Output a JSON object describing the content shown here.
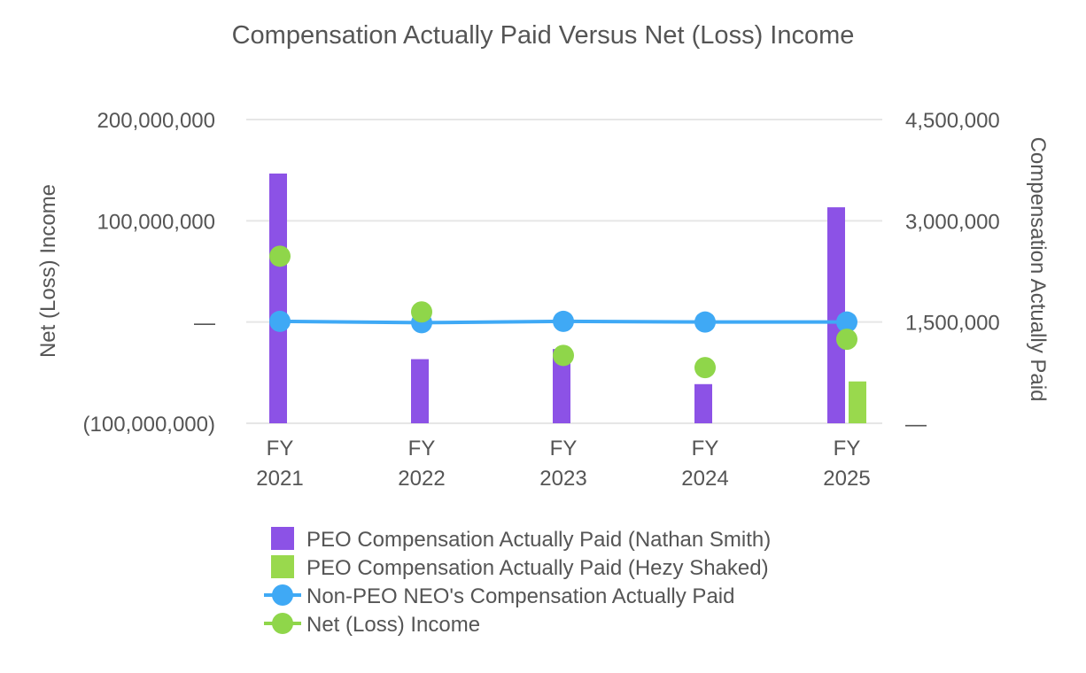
{
  "chart_data": {
    "type": "bar",
    "title": "Compensation Actually Paid Versus Net (Loss) Income",
    "categories": [
      [
        "FY",
        "2021"
      ],
      [
        "FY",
        "2022"
      ],
      [
        "FY",
        "2023"
      ],
      [
        "FY",
        "2024"
      ],
      [
        "FY",
        "2025"
      ]
    ],
    "y_left": {
      "label": "Net (Loss) Income",
      "ylim": [
        -100000000,
        200000000
      ],
      "ticks": [
        {
          "value": 200000000,
          "label": "200,000,000"
        },
        {
          "value": 100000000,
          "label": "100,000,000"
        },
        {
          "value": 0,
          "label": "—"
        },
        {
          "value": -100000000,
          "label": "(100,000,000)"
        }
      ]
    },
    "y_right": {
      "label": "Compensation Actually Paid",
      "ylim": [
        0,
        4500000
      ],
      "ticks": [
        {
          "value": 4500000,
          "label": "4,500,000"
        },
        {
          "value": 3000000,
          "label": "3,000,000"
        },
        {
          "value": 1500000,
          "label": "1,500,000"
        },
        {
          "value": 0,
          "label": "—"
        }
      ]
    },
    "grid": true,
    "legend_position": "bottom",
    "series": [
      {
        "name": "PEO Compensation Actually Paid (Nathan Smith)",
        "kind": "bar",
        "axis": "right",
        "color": "#8c52e6",
        "values": [
          3700000,
          950000,
          1100000,
          580000,
          3200000
        ]
      },
      {
        "name": "PEO Compensation Actually Paid (Hezy Shaked)",
        "kind": "bar",
        "axis": "right",
        "color": "#99d94d",
        "values": [
          null,
          null,
          null,
          null,
          620000
        ]
      },
      {
        "name": "Non-PEO NEO's Compensation Actually Paid",
        "kind": "line",
        "axis": "right",
        "color": "#3fa9f5",
        "values": [
          1510000,
          1490000,
          1510000,
          1500000,
          1500000
        ]
      },
      {
        "name": "Net (Loss) Income",
        "kind": "scatter",
        "axis": "left",
        "color": "#8fd64a",
        "values": [
          65000000,
          10000000,
          -33000000,
          -45000000,
          -17000000
        ]
      }
    ]
  }
}
